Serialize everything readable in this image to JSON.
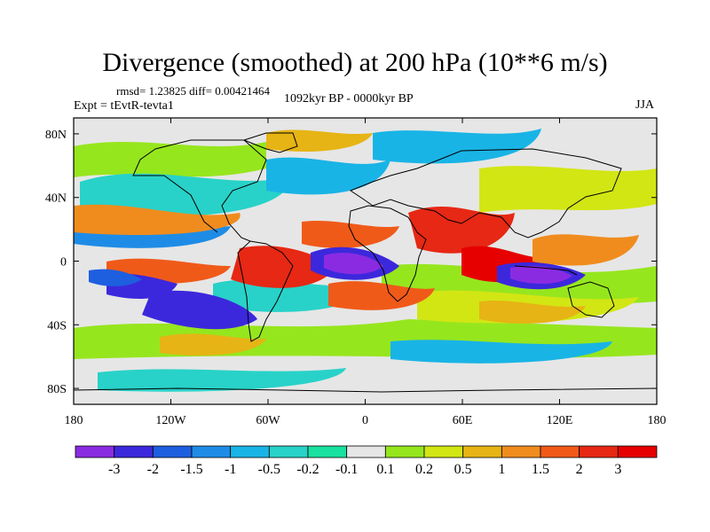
{
  "title": "Divergence (smoothed) at 200 hPa (10**6 m/s)",
  "stats": "rmsd= 1.23825 diff= 0.00421464",
  "experiment": "Expt = tEvtR-tevta1",
  "period": "1092kyr BP - 0000kyr BP",
  "season": "JJA",
  "chart_data": {
    "type": "heatmap",
    "variable": "Divergence (smoothed) at 200 hPa",
    "units": "10**6 m/s",
    "x_ticks": [
      "180",
      "120W",
      "60W",
      "0",
      "60E",
      "120E",
      "180"
    ],
    "y_ticks": [
      "80N",
      "40N",
      "0",
      "40S",
      "80S"
    ],
    "lon_range": [
      -180,
      180
    ],
    "lat_range": [
      -90,
      90
    ],
    "colorbar": {
      "labels": [
        "-3",
        "-2",
        "-1.5",
        "-1",
        "-0.5",
        "-0.2",
        "-0.1",
        "0.1",
        "0.2",
        "0.5",
        "1",
        "1.5",
        "2",
        "3"
      ],
      "colors": [
        "#8a2be2",
        "#3c28dc",
        "#1e5fe0",
        "#1e8ce6",
        "#19b4e6",
        "#28d2c8",
        "#19e1a0",
        "#e6e6e6",
        "#96e61e",
        "#d2e614",
        "#e6b414",
        "#f08c1e",
        "#f05a19",
        "#e62814",
        "#e60000"
      ]
    },
    "features": [
      {
        "label": "strong convergence (< -3)",
        "lon": -20,
        "lat": 0
      },
      {
        "label": "strong convergence (< -3)",
        "lon": 100,
        "lat": -10
      },
      {
        "label": "convergence (-3 to -2)",
        "lon": -125,
        "lat": -25
      },
      {
        "label": "divergence (> 2)",
        "lon": -70,
        "lat": 0
      },
      {
        "label": "divergence (> 2)",
        "lon": 35,
        "lat": 15
      },
      {
        "label": "divergence (> 2)",
        "lon": 80,
        "lat": 0
      }
    ]
  }
}
